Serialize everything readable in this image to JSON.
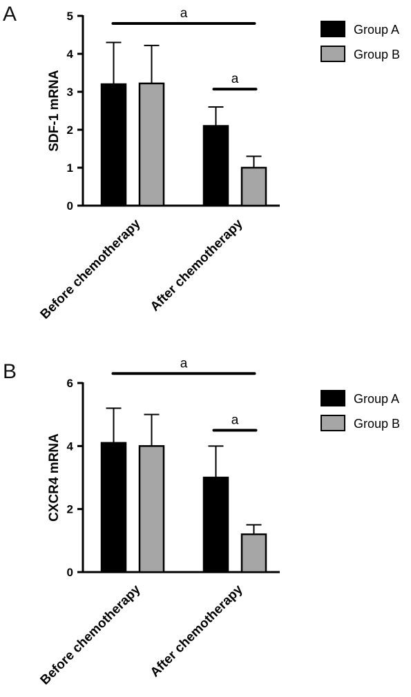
{
  "colors": {
    "group_a": "#000000",
    "group_b": "#a6a6a6"
  },
  "chart_data": [
    {
      "panel": "A",
      "type": "bar",
      "categories": [
        "Before chemotherapy",
        "After chemotherapy"
      ],
      "series": [
        {
          "name": "Group A",
          "values": [
            3.2,
            2.1
          ],
          "error": [
            1.1,
            0.5
          ]
        },
        {
          "name": "Group B",
          "values": [
            3.22,
            1.0
          ],
          "error": [
            1.0,
            0.3
          ]
        }
      ],
      "xlabel": "",
      "ylabel": "SDF-1 mRNA",
      "ylim": [
        0,
        5
      ],
      "yticks": [
        "0",
        "1",
        "2",
        "3",
        "4",
        "5"
      ],
      "legend": "top-right",
      "significance": [
        {
          "label": "a",
          "level": 4.8,
          "span": "Before chemotherapy (Group A) to After chemotherapy (Group B)"
        },
        {
          "label": "a",
          "level": 3.07,
          "span": "After chemotherapy (Group A to Group B)"
        }
      ]
    },
    {
      "panel": "B",
      "type": "bar",
      "categories": [
        "Before chemotherapy",
        "After chemotherapy"
      ],
      "series": [
        {
          "name": "Group A",
          "values": [
            4.1,
            3.0
          ],
          "error": [
            1.1,
            1.0
          ]
        },
        {
          "name": "Group B",
          "values": [
            4.0,
            1.2
          ],
          "error": [
            1.0,
            0.3
          ]
        }
      ],
      "xlabel": "",
      "ylabel": "CXCR4 mRNA",
      "ylim": [
        0,
        6
      ],
      "yticks": [
        "0",
        "2",
        "4",
        "6"
      ],
      "legend": "top-right",
      "significance": [
        {
          "label": "a",
          "level": 6.3,
          "span": "Before chemotherapy (Group A) to After chemotherapy (Group B)"
        },
        {
          "label": "a",
          "level": 4.5,
          "span": "After chemotherapy (Group A to Group B)"
        }
      ]
    }
  ]
}
